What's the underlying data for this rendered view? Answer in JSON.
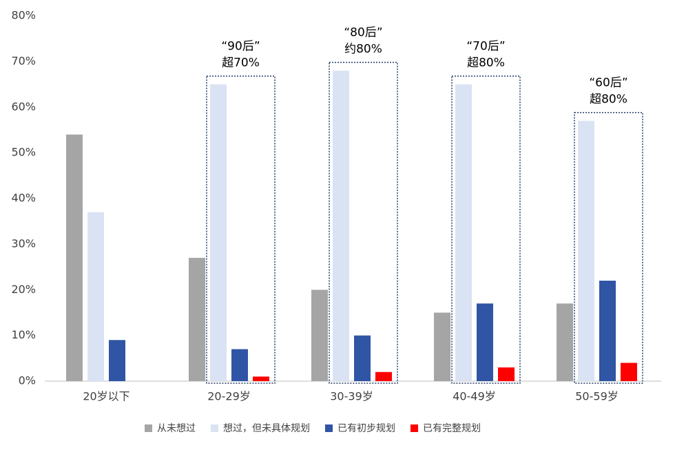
{
  "chart_data": {
    "type": "bar",
    "categories": [
      "20岁以下",
      "20-29岁",
      "30-39岁",
      "40-49岁",
      "50-59岁"
    ],
    "series": [
      {
        "name": "从未想过",
        "color": "#a5a5a5",
        "values": [
          54,
          27,
          20,
          15,
          17
        ]
      },
      {
        "name": "想过，但未具体规划",
        "color": "#dae3f3",
        "values": [
          37,
          65,
          68,
          65,
          57
        ]
      },
      {
        "name": "已有初步规划",
        "color": "#2f55a4",
        "values": [
          9,
          7,
          10,
          17,
          22
        ]
      },
      {
        "name": "已有完整规划",
        "color": "#ff0000",
        "values": [
          null,
          1,
          2,
          3,
          4
        ]
      }
    ],
    "ylim": [
      0,
      80
    ],
    "yticks": [
      {
        "value": 0,
        "label": "0%"
      },
      {
        "value": 10,
        "label": "10%"
      },
      {
        "value": 20,
        "label": "20%"
      },
      {
        "value": 30,
        "label": "30%"
      },
      {
        "value": 40,
        "label": "40%"
      },
      {
        "value": 50,
        "label": "50%"
      },
      {
        "value": 60,
        "label": "60%"
      },
      {
        "value": 70,
        "label": "70%"
      },
      {
        "value": 80,
        "label": "80%"
      }
    ],
    "grid": false,
    "legend": "bottom",
    "annotations": [
      {
        "category": "20-29岁",
        "lines": [
          "“90后”",
          "超70%"
        ]
      },
      {
        "category": "30-39岁",
        "lines": [
          "“80后”",
          "约80%"
        ]
      },
      {
        "category": "40-49岁",
        "lines": [
          "“70后”",
          "超80%"
        ]
      },
      {
        "category": "50-59岁",
        "lines": [
          "“60后”",
          "超80%"
        ]
      }
    ]
  }
}
